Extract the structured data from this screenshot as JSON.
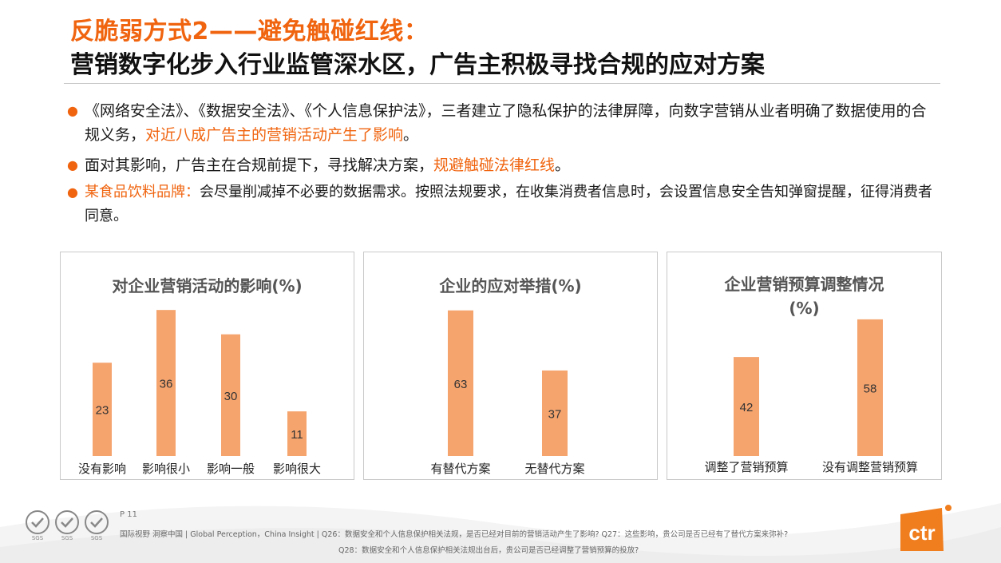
{
  "header": {
    "title_line1": "反脆弱方式2——避免触碰红线：",
    "title_line2": "营销数字化步入行业监管深水区，广告主积极寻找合规的应对方案"
  },
  "bullets": {
    "b1_text1": "《网络安全法》、《数据安全法》、《个人信息保护法》，三者建立了隐私保护的法律屏障，向数字营销从业者明确了数据使用的合规义务，",
    "b1_highlight": "对近八成广告主的营销活动产生了影响",
    "b1_end": "。",
    "b2_text1": "面对其影响，广告主在合规前提下，寻找解决方案，",
    "b2_highlight": "规避触碰法律红线",
    "b2_end": "。",
    "b3_label": "某食品饮料品牌：",
    "b3_text": "会尽量削减掉不必要的数据需求。按照法规要求，在收集消费者信息时，会设置信息安全告知弹窗提醒，征得消费者同意。",
    "dot": "●"
  },
  "chart_data": [
    {
      "type": "bar",
      "title": "对企业营销活动的影响(%)",
      "categories": [
        "没有影响",
        "影响很小",
        "影响一般",
        "影响很大"
      ],
      "values": [
        23,
        36,
        30,
        11
      ],
      "ylim": [
        0,
        38
      ],
      "bar_color": "#f5a46e"
    },
    {
      "type": "bar",
      "title": "企业的应对举措(%)",
      "categories": [
        "有替代方案",
        "无替代方案"
      ],
      "values": [
        63,
        37
      ],
      "ylim": [
        0,
        66
      ],
      "bar_color": "#f5a46e"
    },
    {
      "type": "bar",
      "title": "企业营销预算调整情况",
      "title_line2": "(%)",
      "categories": [
        "调整了营销预算",
        "没有调整营销预算"
      ],
      "values": [
        42,
        58
      ],
      "ylim": [
        0,
        60
      ],
      "bar_color": "#f5a46e"
    }
  ],
  "footer": {
    "page": "P 11",
    "line1": "国际视野 洞察中国 | Global Perception，China Insight | Q26：数据安全和个人信息保护相关法规，是否已经对目前的营销活动产生了影响? Q27：这些影响，贵公司是否已经有了替代方案来弥补?",
    "line2": "Q28：数据安全和个人信息保护相关法规出台后，贵公司是否已经调整了营销预算的投放?",
    "logo_text": "ctr",
    "badge_text": "SGS"
  },
  "colors": {
    "accent": "#f0640f",
    "bar": "#f5a46e",
    "logo": "#f07d1e"
  }
}
